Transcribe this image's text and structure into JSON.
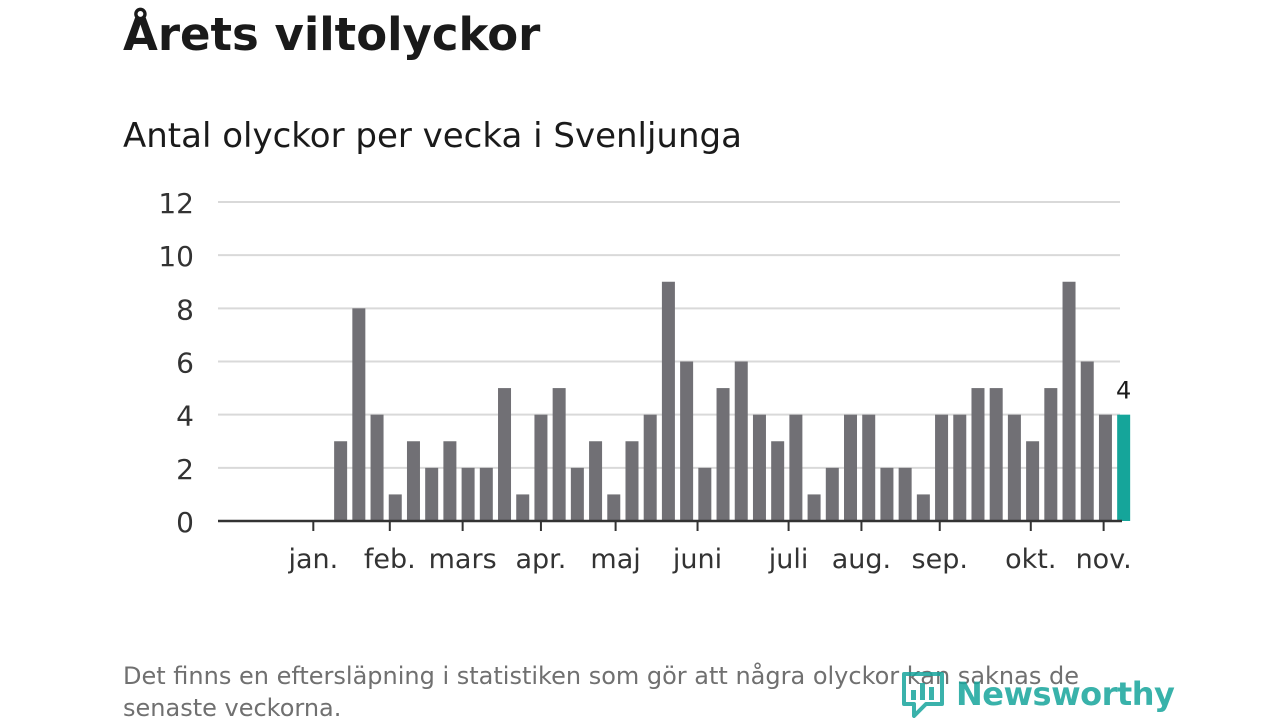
{
  "header": {
    "title": "Årets viltolyckor",
    "subtitle": "Antal olyckor per vecka i Svenljunga"
  },
  "footer": {
    "note": "Det finns en eftersläpning i statistiken som gör att några olyckor kan saknas de senaste veckorna.",
    "logo_text": "Newsworthy",
    "logo_icon": "bar-chart-speech-icon"
  },
  "colors": {
    "bar": "#717075",
    "highlight": "#15a59a",
    "grid": "#d9d9d9",
    "axis": "#333333",
    "text": "#1a1a1a",
    "muted": "#707070"
  },
  "chart_data": {
    "type": "bar",
    "title": "Antal olyckor per vecka i Svenljunga",
    "xlabel": "",
    "ylabel": "",
    "ylim": [
      0,
      12
    ],
    "yticks": [
      0,
      2,
      4,
      6,
      8,
      10,
      12
    ],
    "grid": true,
    "weeks": [
      1,
      2,
      3,
      4,
      5,
      6,
      7,
      8,
      9,
      10,
      11,
      12,
      13,
      14,
      15,
      16,
      17,
      18,
      19,
      20,
      21,
      22,
      23,
      24,
      25,
      26,
      27,
      28,
      29,
      30,
      31,
      32,
      33,
      34,
      35,
      36,
      37,
      38,
      39,
      40,
      41,
      42,
      43,
      44,
      45,
      46,
      47,
      48,
      49
    ],
    "values": [
      null,
      null,
      null,
      3,
      8,
      4,
      1,
      3,
      2,
      3,
      2,
      2,
      5,
      1,
      4,
      5,
      2,
      3,
      1,
      3,
      4,
      9,
      6,
      2,
      5,
      6,
      4,
      3,
      4,
      1,
      2,
      4,
      4,
      2,
      2,
      1,
      4,
      4,
      5,
      5,
      4,
      3,
      5,
      9,
      6,
      4,
      4,
      null,
      null
    ],
    "highlight_index": 46,
    "highlight_label": "4",
    "month_ticks": [
      {
        "label": "jan.",
        "week": 2.5
      },
      {
        "label": "feb.",
        "week": 6.7
      },
      {
        "label": "mars",
        "week": 10.7
      },
      {
        "label": "apr.",
        "week": 15.0
      },
      {
        "label": "maj",
        "week": 19.1
      },
      {
        "label": "juni",
        "week": 23.6
      },
      {
        "label": "juli",
        "week": 28.6
      },
      {
        "label": "aug.",
        "week": 32.6
      },
      {
        "label": "sep.",
        "week": 36.9
      },
      {
        "label": "okt.",
        "week": 41.9
      },
      {
        "label": "nov.",
        "week": 45.9
      }
    ]
  }
}
